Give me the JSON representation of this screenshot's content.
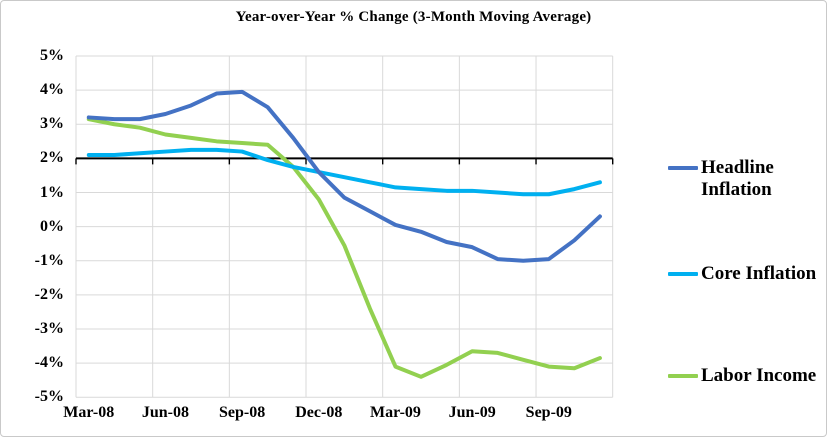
{
  "window": {
    "background": "#FFFFFF",
    "border_color": "#C9C9C9"
  },
  "chart_data": {
    "type": "line",
    "title": "Year-over-Year % Change (3-Month Moving Average)",
    "categories": [
      "Mar-08",
      "Apr-08",
      "May-08",
      "Jun-08",
      "Jul-08",
      "Aug-08",
      "Sep-08",
      "Oct-08",
      "Nov-08",
      "Dec-08",
      "Jan-09",
      "Feb-09",
      "Mar-09",
      "Apr-09",
      "May-09",
      "Jun-09",
      "Jul-09",
      "Aug-09",
      "Sep-09",
      "Oct-09",
      "Nov-09"
    ],
    "x_axis_tick_labels": [
      "Mar-08",
      "Jun-08",
      "Sep-08",
      "Dec-08",
      "Mar-09",
      "Jun-09",
      "Sep-09"
    ],
    "x_tick_every": 3,
    "series": [
      {
        "name": "Headline Inflation",
        "color": "#4472C4",
        "values": [
          3.2,
          3.15,
          3.15,
          3.3,
          3.55,
          3.9,
          3.95,
          3.5,
          2.6,
          1.6,
          0.85,
          0.45,
          0.05,
          -0.15,
          -0.45,
          -0.6,
          -0.95,
          -1.0,
          -0.95,
          -0.4,
          0.3
        ]
      },
      {
        "name": "Core Inflation",
        "color": "#00B0F0",
        "values": [
          2.1,
          2.1,
          2.15,
          2.2,
          2.25,
          2.25,
          2.2,
          1.95,
          1.75,
          1.6,
          1.45,
          1.3,
          1.15,
          1.1,
          1.05,
          1.05,
          1.0,
          0.95,
          0.95,
          1.1,
          1.3
        ]
      },
      {
        "name": "Labor Income",
        "color": "#92D050",
        "values": [
          3.15,
          3.0,
          2.9,
          2.7,
          2.6,
          2.5,
          2.45,
          2.4,
          1.75,
          0.8,
          -0.55,
          -2.4,
          -4.1,
          -4.4,
          -4.05,
          -3.65,
          -3.7,
          -3.9,
          -4.1,
          -4.15,
          -3.85
        ]
      }
    ],
    "y_axis": {
      "min": -5,
      "max": 5,
      "step": 1,
      "tick_labels": [
        "5%",
        "4%",
        "3%",
        "2%",
        "1%",
        "0%",
        "-1%",
        "-2%",
        "-3%",
        "-4%",
        "-5%"
      ],
      "axis_crosses_at": 2
    },
    "grid": {
      "color": "#D9D9D9",
      "horizontal": true,
      "vertical": true
    },
    "axis_line_color": "#000000",
    "legend": {
      "position": "right"
    }
  }
}
